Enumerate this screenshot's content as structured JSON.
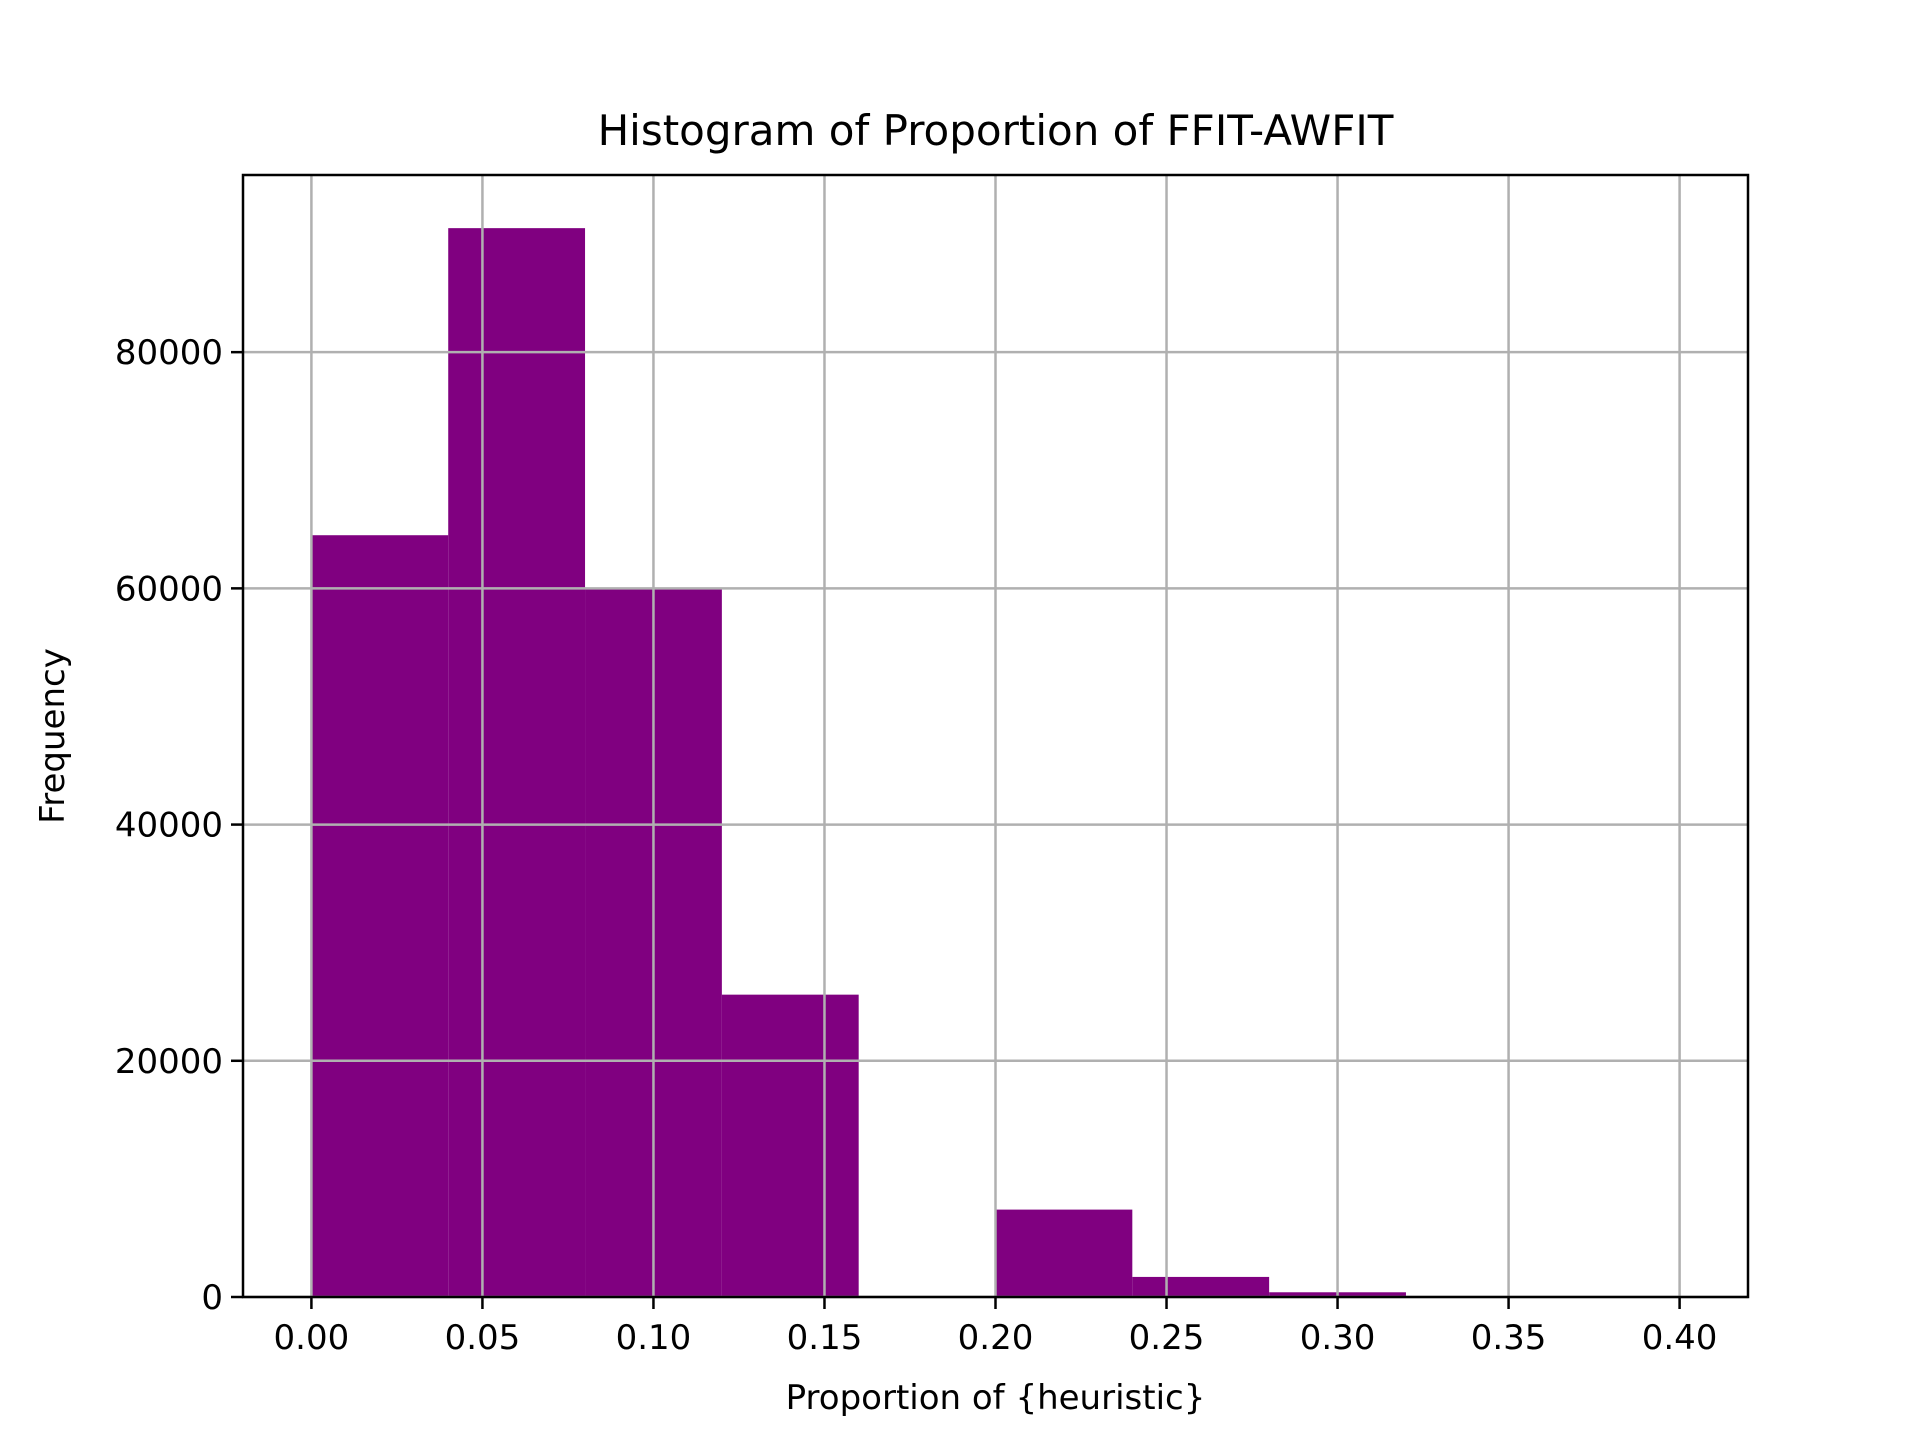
{
  "chart_data": {
    "type": "bar",
    "title": "Histogram of Proportion of FFIT-AWFIT",
    "xlabel": "Proportion of {heuristic}",
    "ylabel": "Frequency",
    "xlim": [
      -0.02,
      0.42
    ],
    "ylim": [
      0,
      95000
    ],
    "xticks": [
      0.0,
      0.05,
      0.1,
      0.15,
      0.2,
      0.25,
      0.3,
      0.35,
      0.4
    ],
    "xtick_labels": [
      "0.00",
      "0.05",
      "0.10",
      "0.15",
      "0.20",
      "0.25",
      "0.30",
      "0.35",
      "0.40"
    ],
    "yticks": [
      0,
      20000,
      40000,
      60000,
      80000
    ],
    "ytick_labels": [
      "0",
      "20000",
      "40000",
      "60000",
      "80000"
    ],
    "grid": true,
    "color": "#800080",
    "bins": [
      {
        "x0": 0.0,
        "x1": 0.04,
        "value": 64500
      },
      {
        "x0": 0.04,
        "x1": 0.08,
        "value": 90500
      },
      {
        "x0": 0.08,
        "x1": 0.12,
        "value": 60000
      },
      {
        "x0": 0.12,
        "x1": 0.16,
        "value": 25600
      },
      {
        "x0": 0.16,
        "x1": 0.2,
        "value": 0
      },
      {
        "x0": 0.2,
        "x1": 0.24,
        "value": 7400
      },
      {
        "x0": 0.24,
        "x1": 0.28,
        "value": 1700
      },
      {
        "x0": 0.28,
        "x1": 0.32,
        "value": 400
      },
      {
        "x0": 0.32,
        "x1": 0.36,
        "value": 0
      },
      {
        "x0": 0.36,
        "x1": 0.4,
        "value": 0
      }
    ]
  }
}
